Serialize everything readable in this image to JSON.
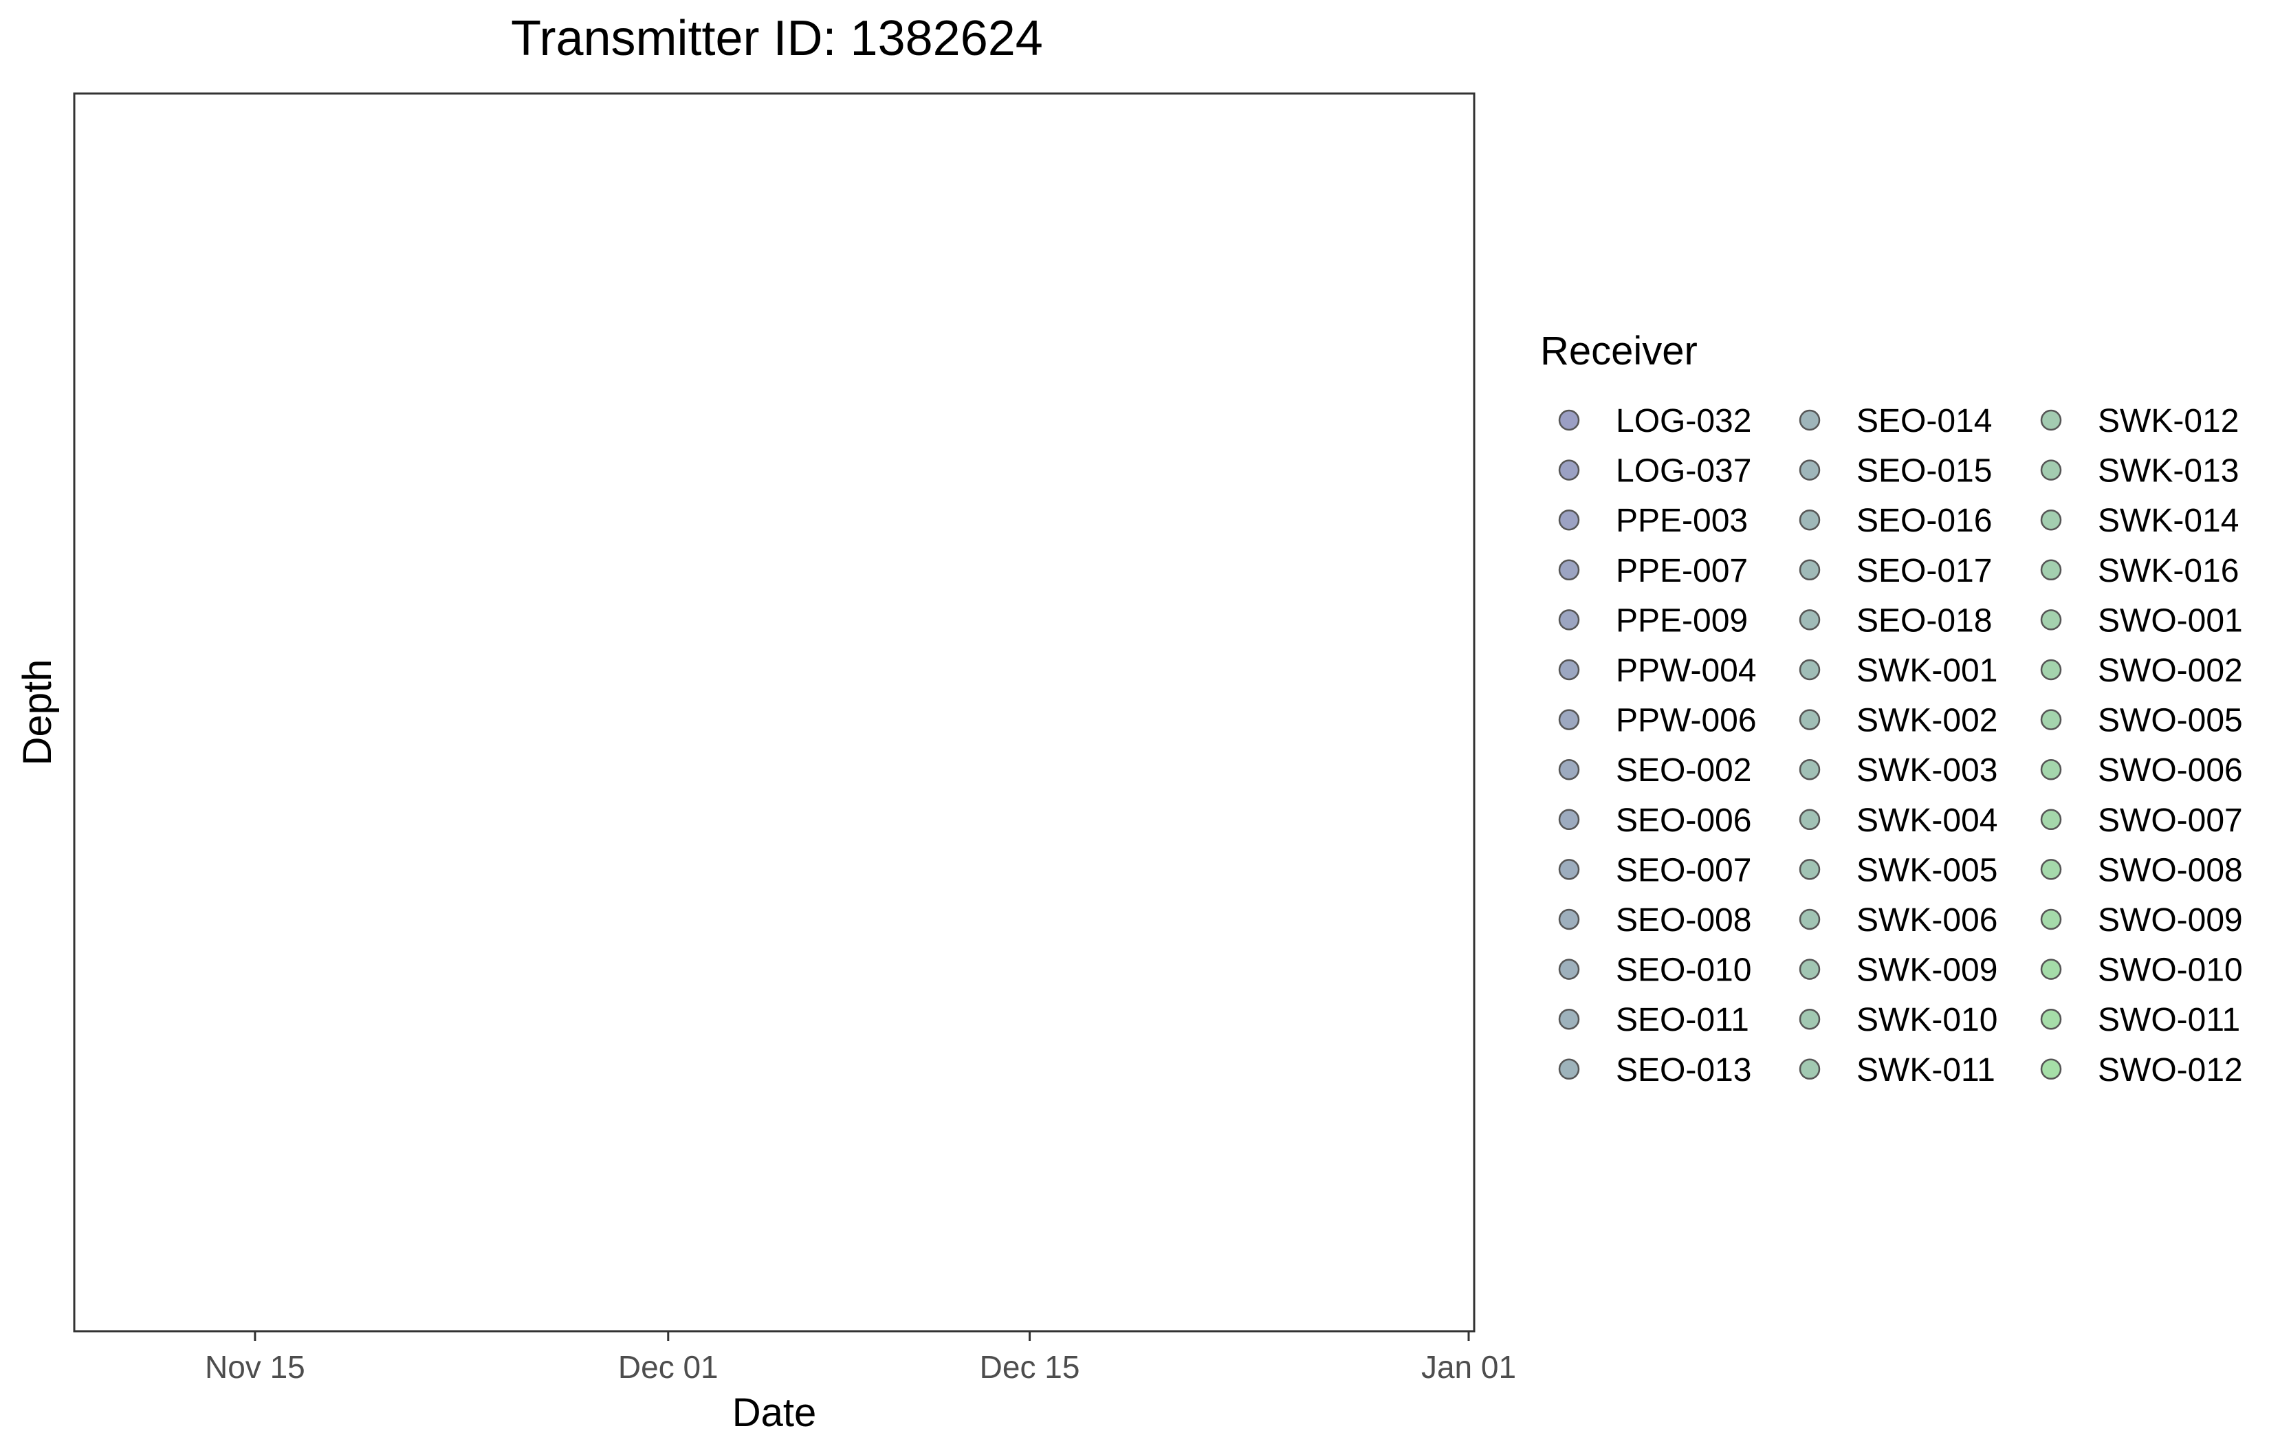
{
  "chart_data": {
    "type": "scatter",
    "title": "Transmitter ID: 1382624",
    "xlabel": "Date",
    "ylabel": "Depth",
    "xlim": [
      "2024-11-08",
      "2025-01-01"
    ],
    "x_ticks": [
      "2024-11-15",
      "2024-12-01",
      "2024-12-15",
      "2025-01-01"
    ],
    "x_tick_labels": [
      "Nov 15",
      "Dec 01",
      "Dec 15",
      "Jan 01"
    ],
    "points": [],
    "grid": false,
    "legend": {
      "title": "Receiver",
      "placement": "right",
      "columns": 3,
      "color_start": "#9b9fc4",
      "color_end": "#a6dfa8",
      "entries": [
        "LOG-032",
        "LOG-037",
        "PPE-003",
        "PPE-007",
        "PPE-009",
        "PPW-004",
        "PPW-006",
        "SEO-002",
        "SEO-006",
        "SEO-007",
        "SEO-008",
        "SEO-010",
        "SEO-011",
        "SEO-013",
        "SEO-014",
        "SEO-015",
        "SEO-016",
        "SEO-017",
        "SEO-018",
        "SWK-001",
        "SWK-002",
        "SWK-003",
        "SWK-004",
        "SWK-005",
        "SWK-006",
        "SWK-009",
        "SWK-010",
        "SWK-011",
        "SWK-012",
        "SWK-013",
        "SWK-014",
        "SWK-016",
        "SWO-001",
        "SWO-002",
        "SWO-005",
        "SWO-006",
        "SWO-007",
        "SWO-008",
        "SWO-009",
        "SWO-010",
        "SWO-011",
        "SWO-012"
      ]
    }
  }
}
